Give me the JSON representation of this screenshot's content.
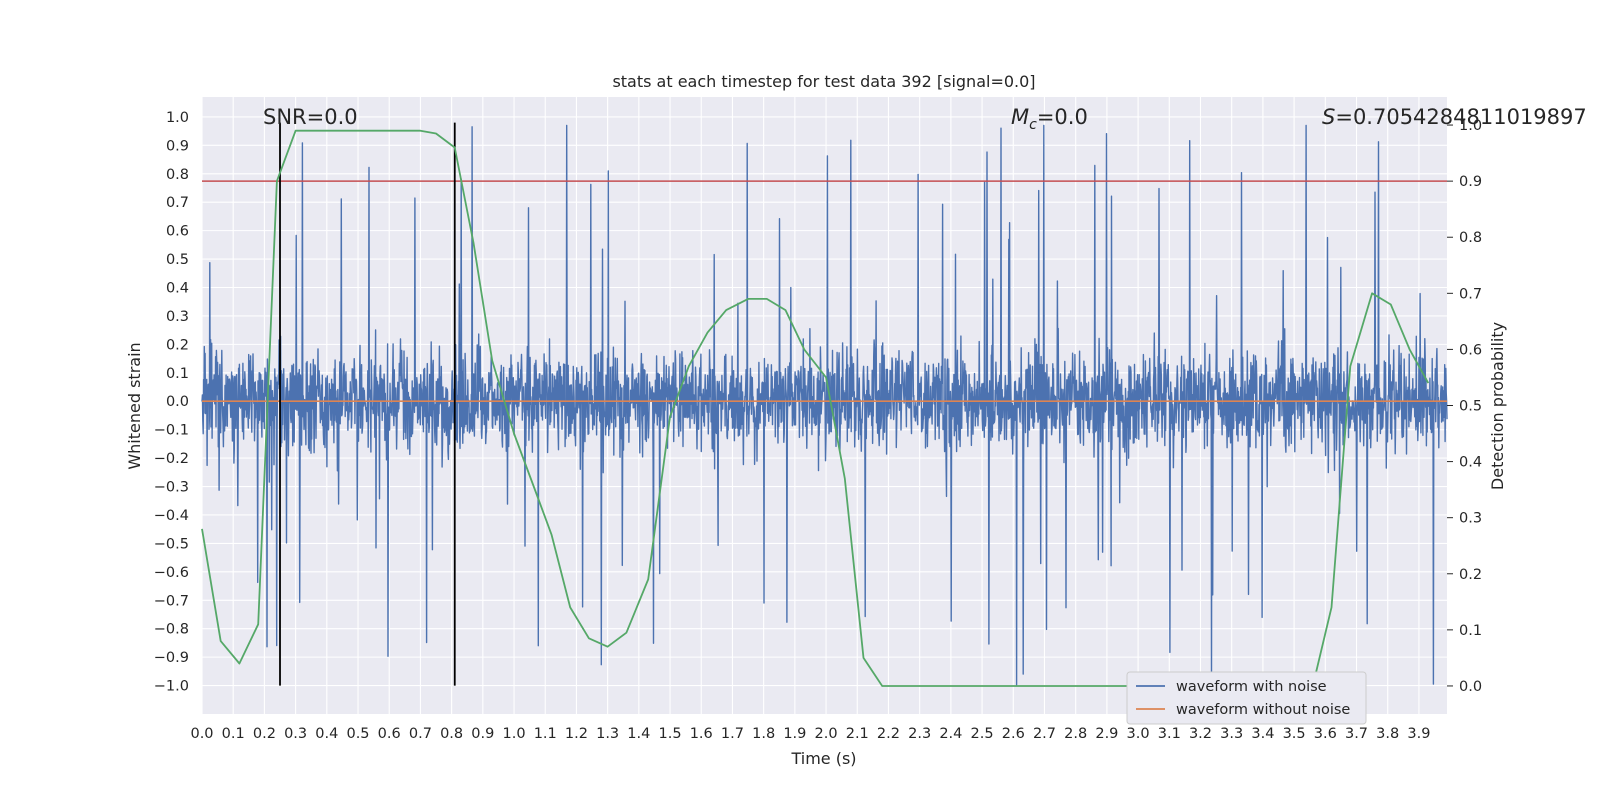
{
  "chart_data": {
    "type": "line",
    "title": "stats at each timestep for test data 392 [signal=0.0]",
    "xlabel": "Time (s)",
    "ylabel": "Whitened strain",
    "y2label": "Detection probability",
    "xlim": [
      0.0,
      3.99
    ],
    "ylim": [
      -1.1,
      1.07
    ],
    "y2lim": [
      -0.05,
      1.05
    ],
    "x_ticks": [
      "0.0",
      "0.1",
      "0.2",
      "0.3",
      "0.4",
      "0.5",
      "0.6",
      "0.7",
      "0.8",
      "0.9",
      "1.0",
      "1.1",
      "1.2",
      "1.3",
      "1.4",
      "1.5",
      "1.6",
      "1.7",
      "1.8",
      "1.9",
      "2.0",
      "2.1",
      "2.2",
      "2.3",
      "2.4",
      "2.5",
      "2.6",
      "2.7",
      "2.8",
      "2.9",
      "3.0",
      "3.1",
      "3.2",
      "3.3",
      "3.4",
      "3.5",
      "3.6",
      "3.7",
      "3.8",
      "3.9"
    ],
    "y_ticks": [
      "1.0",
      "0.9",
      "0.8",
      "0.7",
      "0.6",
      "0.5",
      "0.4",
      "0.3",
      "0.2",
      "0.1",
      "0.0",
      "-0.1",
      "-0.2",
      "-0.3",
      "-0.4",
      "-0.5",
      "-0.6",
      "-0.7",
      "-0.8",
      "-0.9",
      "-1.0"
    ],
    "y2_ticks": [
      "1.0",
      "0.9",
      "0.8",
      "0.7",
      "0.6",
      "0.5",
      "0.4",
      "0.3",
      "0.2",
      "0.1",
      "0.0"
    ],
    "grid": true,
    "legend_position": "lower-right",
    "annotations": {
      "snr": "SNR=0.0",
      "mc_symbol": "M",
      "mc_sub": "c",
      "mc_value": "=0.0",
      "s_symbol": "S",
      "s_value": "=0.7054284811019897"
    },
    "series": [
      {
        "name": "waveform with noise",
        "color": "#4c72b0",
        "kind": "noise",
        "amplitude_typical": 0.3,
        "amplitude_peak": 1.0
      },
      {
        "name": "waveform without noise",
        "color": "#dd8452",
        "kind": "constant",
        "y": 0.0
      },
      {
        "kind": "detection_probability",
        "color": "#55a868",
        "axis": "right",
        "x": [
          0.0,
          0.06,
          0.12,
          0.18,
          0.24,
          0.3,
          0.4,
          0.5,
          0.6,
          0.7,
          0.75,
          0.81,
          0.87,
          0.93,
          1.0,
          1.06,
          1.12,
          1.18,
          1.24,
          1.3,
          1.36,
          1.43,
          1.5,
          1.56,
          1.62,
          1.68,
          1.75,
          1.81,
          1.87,
          1.93,
          2.0,
          2.06,
          2.12,
          2.18,
          2.24,
          2.5,
          2.8,
          3.1,
          3.4,
          3.56,
          3.62,
          3.68,
          3.75,
          3.81,
          3.87,
          3.93
        ],
        "y": [
          0.28,
          0.08,
          0.04,
          0.11,
          0.9,
          0.99,
          0.99,
          0.99,
          0.99,
          0.99,
          0.985,
          0.96,
          0.79,
          0.58,
          0.45,
          0.36,
          0.27,
          0.14,
          0.085,
          0.07,
          0.095,
          0.19,
          0.48,
          0.57,
          0.63,
          0.67,
          0.69,
          0.69,
          0.67,
          0.6,
          0.55,
          0.37,
          0.05,
          0.0,
          0.0,
          0.0,
          0.0,
          0.0,
          0.0,
          0.0,
          0.14,
          0.57,
          0.7,
          0.68,
          0.6,
          0.54
        ]
      },
      {
        "kind": "threshold",
        "color": "#c44e52",
        "axis": "right",
        "y": 0.9
      },
      {
        "kind": "vertical_markers",
        "color": "#000000",
        "x": [
          0.25,
          0.81
        ],
        "y_top": 0.98,
        "y_bottom": -1.0
      }
    ]
  }
}
